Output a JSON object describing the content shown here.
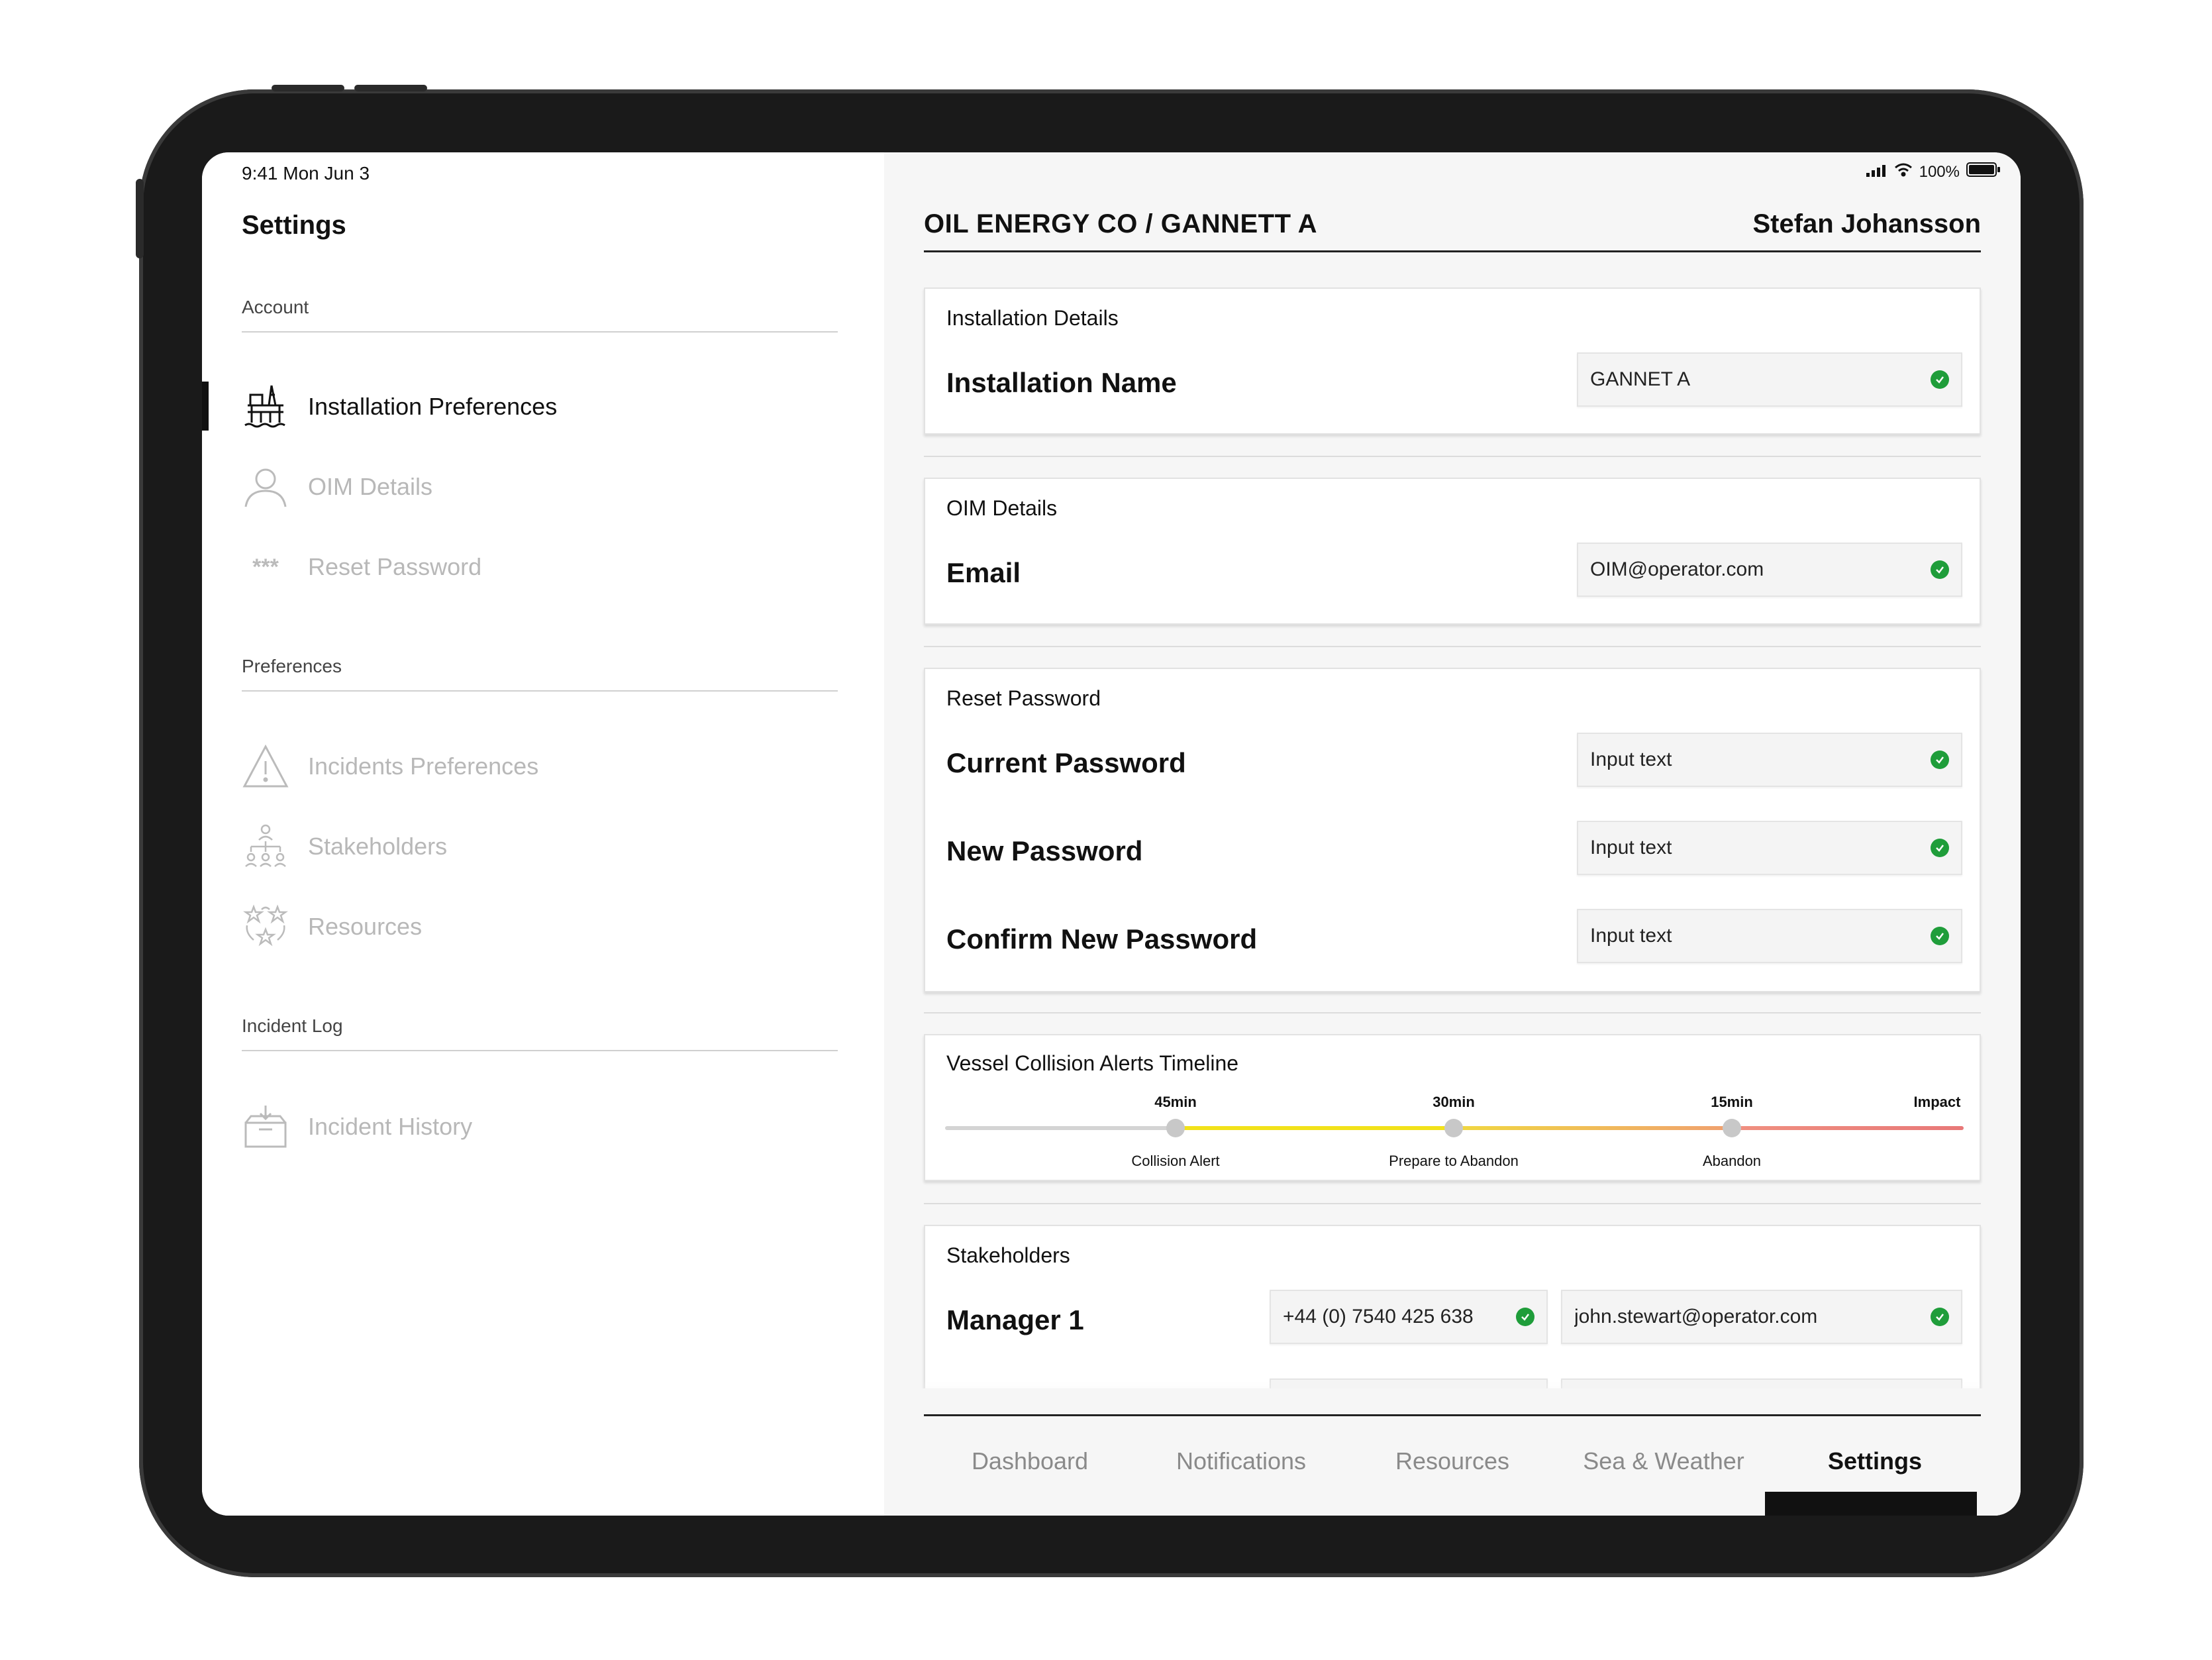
{
  "status": {
    "time": "9:41  Mon Jun 3",
    "battery": "100%"
  },
  "sidebar": {
    "title": "Settings",
    "sections": {
      "account": "Account",
      "preferences": "Preferences",
      "incident_log": "Incident Log"
    },
    "items": {
      "installation_preferences": "Installation Preferences",
      "oim_details": "OIM Details",
      "reset_password": "Reset Password",
      "incidents_preferences": "Incidents Preferences",
      "stakeholders": "Stakeholders",
      "resources": "Resources",
      "incident_history": "Incident History"
    },
    "active": "installation_preferences",
    "password_glyph": "***"
  },
  "header": {
    "breadcrumb": "OIL ENERGY CO /  GANNETT A",
    "user": "Stefan Johansson"
  },
  "installation": {
    "title": "Installation Details",
    "name_label": "Installation Name",
    "name_value": "GANNET A"
  },
  "oim": {
    "title": "OIM Details",
    "email_label": "Email",
    "email_value": "OIM@operator.com"
  },
  "reset": {
    "title": "Reset Password",
    "current_label": "Current Password",
    "current_value": "Input text",
    "new_label": "New Password",
    "new_value": "Input text",
    "confirm_label": "Confirm New Password",
    "confirm_value": "Input text"
  },
  "timeline": {
    "title": "Vessel Collision Alerts Timeline",
    "top_labels": [
      "45min",
      "30min",
      "15min",
      "Impact"
    ],
    "bottom_labels": [
      "Collision Alert",
      "Prepare to Abandon",
      "Abandon"
    ],
    "colors": {
      "grey": "#cfcfcf",
      "yellow": "#f2e21a",
      "orange": "#f0a070",
      "red": "#e88080"
    }
  },
  "stakeholders": {
    "title": "Stakeholders",
    "manager_label": "Manager 1",
    "manager_phone": "+44 (0) 7540 425 638",
    "manager_email": "john.stewart@operator.com"
  },
  "tabs": [
    "Dashboard",
    "Notifications",
    "Resources",
    "Sea & Weather",
    "Settings"
  ],
  "active_tab": "Settings",
  "colors": {
    "check": "#1f9d3a",
    "active_text": "#111111",
    "inactive_text": "#b8b8b8"
  }
}
